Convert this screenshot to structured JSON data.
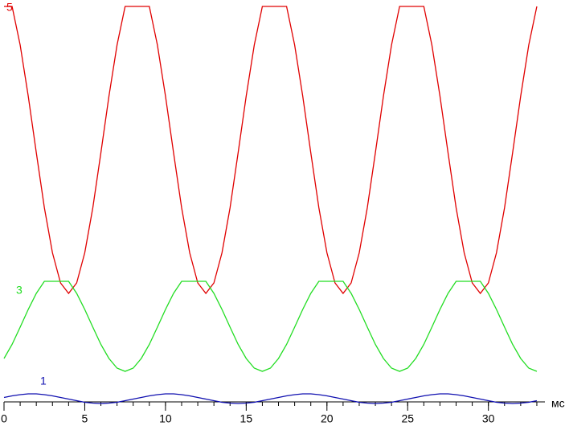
{
  "chart_data": {
    "type": "line",
    "xlabel": "мс",
    "x": [
      0,
      0.5,
      1,
      1.5,
      2,
      2.5,
      3,
      3.5,
      4,
      4.5,
      5,
      5.5,
      6,
      6.5,
      7,
      7.5,
      8,
      8.5,
      9,
      9.5,
      10,
      10.5,
      11,
      11.5,
      12,
      12.5,
      13,
      13.5,
      14,
      14.5,
      15,
      15.5,
      16,
      16.5,
      17,
      17.5,
      18,
      18.5,
      19,
      19.5,
      20,
      20.5,
      21,
      21.5,
      22,
      22.5,
      23,
      23.5,
      24,
      24.5,
      25,
      25.5,
      26,
      26.5,
      27,
      27.5,
      28,
      28.5,
      29,
      29.5,
      30,
      30.5,
      31,
      31.5,
      32,
      32.5,
      33
    ],
    "series": [
      {
        "name": "5",
        "color": "#e00000",
        "values": [
          98.4,
          98.4,
          88.8,
          76.1,
          62,
          48.3,
          37.1,
          29.6,
          27,
          29.6,
          37.1,
          48.3,
          62,
          76.1,
          88.8,
          98.4,
          98.4,
          98.4,
          98.4,
          88.8,
          76.1,
          62,
          48.3,
          37.1,
          29.6,
          27,
          29.6,
          37.1,
          48.3,
          62,
          76.1,
          88.8,
          98.4,
          98.4,
          98.4,
          98.4,
          88.8,
          76.1,
          62,
          48.3,
          37.1,
          29.6,
          27,
          29.6,
          37.1,
          48.3,
          62,
          76.1,
          88.8,
          98.4,
          98.4,
          98.4,
          98.4,
          88.8,
          76.1,
          62,
          48.3,
          37.1,
          29.6,
          27,
          29.6,
          37.1,
          48.3,
          62,
          76.1,
          88.8,
          98.4
        ]
      },
      {
        "name": "3",
        "color": "#22dd22",
        "values": [
          10.8,
          14.3,
          18.6,
          23,
          27,
          30,
          30,
          30,
          30,
          27,
          23,
          18.6,
          14.3,
          10.8,
          8.4,
          7.6,
          8.4,
          10.8,
          14.3,
          18.6,
          23,
          27,
          30,
          30,
          30,
          30,
          27,
          23,
          18.6,
          14.3,
          10.8,
          8.4,
          7.6,
          8.4,
          10.8,
          14.3,
          18.6,
          23,
          27,
          30,
          30,
          30,
          30,
          27,
          23,
          18.6,
          14.3,
          10.8,
          8.4,
          7.6,
          8.4,
          10.8,
          14.3,
          18.6,
          23,
          27,
          30,
          30,
          30,
          30,
          27,
          23,
          18.6,
          14.3,
          10.8,
          8.4,
          7.6
        ]
      },
      {
        "name": "1",
        "color": "#1010b0",
        "values": [
          1.1,
          1.5,
          1.8,
          2,
          2,
          1.8,
          1.5,
          1.1,
          0.7,
          0.3,
          -0.1,
          -0.3,
          -0.4,
          -0.3,
          -0.1,
          0.3,
          0.7,
          1.1,
          1.5,
          1.8,
          2,
          2,
          1.8,
          1.5,
          1.1,
          0.7,
          0.3,
          -0.1,
          -0.3,
          -0.4,
          -0.3,
          -0.1,
          0.3,
          0.7,
          1.1,
          1.5,
          1.8,
          2,
          2,
          1.8,
          1.5,
          1.1,
          0.7,
          0.3,
          -0.1,
          -0.3,
          -0.4,
          -0.3,
          -0.1,
          0.3,
          0.7,
          1.1,
          1.5,
          1.8,
          2,
          2,
          1.8,
          1.5,
          1.1,
          0.7,
          0.3,
          -0.1,
          -0.3,
          -0.4,
          -0.3,
          -0.1,
          0.3
        ]
      }
    ],
    "xlim": [
      0,
      33.5
    ],
    "ylim": [
      -6,
      100
    ],
    "xticks": [
      0,
      5,
      10,
      15,
      20,
      25,
      30
    ],
    "xticks_minor": [
      0,
      1,
      2,
      3,
      4,
      5,
      6,
      7,
      8,
      9,
      10,
      11,
      12,
      13,
      14,
      15,
      16,
      17,
      18,
      19,
      20,
      21,
      22,
      23,
      24,
      25,
      26,
      27,
      28,
      29,
      30,
      31,
      32,
      33
    ],
    "grid": false
  }
}
